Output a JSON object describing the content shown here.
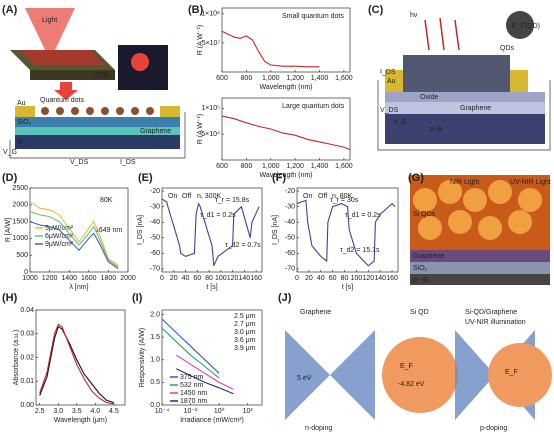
{
  "figure": {
    "panel_labels": [
      "(A)",
      "(B)",
      "(C)",
      "(D)",
      "(E)",
      "(F)",
      "(G)",
      "(H)",
      "(I)",
      "(J)"
    ],
    "a_texts": [
      "Light",
      "CdS",
      "Quantum dots",
      "Au",
      "SiO₂",
      "Graphene",
      "Si",
      "V_G",
      "V_DS",
      "I_DS"
    ],
    "c_texts": [
      "hν",
      "QDs",
      "E_F(QD)",
      "Au",
      "Oxide",
      "Graphene",
      "p-Si",
      "I_DS",
      "V_DS",
      "V_G"
    ],
    "g_texts": [
      "NIR Light",
      "UV-NIR Light",
      "Si QDs",
      "Graphene",
      "SiO₂",
      "p⁺-Si"
    ],
    "j_texts": [
      "Graphene",
      "Si QD",
      "Si-QD/Graphene",
      "UV-NIR illumination",
      "5 eV",
      "-4.82 eV",
      "n-doping",
      "p-doping",
      "E_F",
      "E_F"
    ]
  },
  "chart_data": [
    {
      "type": "line",
      "title": "Small quantum dots",
      "xlabel": "Wavelength (nm)",
      "ylabel": "R (A W⁻¹)",
      "xlim": [
        600,
        1650
      ],
      "xticks": [
        600,
        800,
        {
          "value": 1000,
          "label": "1,000"
        },
        {
          "value": 1200,
          "label": "1,200"
        },
        {
          "value": 1400,
          "label": "1,400"
        },
        {
          "value": 1600,
          "label": "1,600"
        }
      ],
      "ylim": [
        0,
        110000000
      ],
      "yticks": [
        {
          "value": 50000000,
          "label": "5×10⁷"
        },
        {
          "value": 100000000,
          "label": "1×10⁸"
        }
      ],
      "series": [
        {
          "color": "#c0282d",
          "x": [
            600,
            650,
            700,
            750,
            800,
            850,
            900,
            950,
            1000,
            1100,
            1200,
            1300,
            1400
          ],
          "values": [
            70000000,
            65000000,
            60000000,
            58000000,
            62000000,
            55000000,
            35000000,
            18000000,
            12000000,
            10000000,
            10000000,
            9000000,
            9000000
          ]
        }
      ]
    },
    {
      "type": "line",
      "title": "Large quantum dots",
      "xlabel": "Wavelength (nm)",
      "ylabel": "R (A W⁻¹)",
      "xlim": [
        600,
        1650
      ],
      "xticks": [
        600,
        800,
        {
          "value": 1000,
          "label": "1,000"
        },
        {
          "value": 1200,
          "label": "1,200"
        },
        {
          "value": 1400,
          "label": "1,400"
        },
        {
          "value": 1600,
          "label": "1,600"
        }
      ],
      "ylim": [
        0,
        120000
      ],
      "yticks": [
        {
          "value": 50000,
          "label": "5×10⁴"
        },
        {
          "value": 100000,
          "label": "1×10⁵"
        }
      ],
      "series": [
        {
          "color": "#c0282d",
          "x": [
            600,
            700,
            800,
            900,
            1000,
            1100,
            1200,
            1300,
            1400,
            1500,
            1600,
            1650
          ],
          "values": [
            85000,
            80000,
            72000,
            65000,
            60000,
            52000,
            48000,
            40000,
            35000,
            30000,
            25000,
            20000
          ]
        }
      ]
    },
    {
      "type": "line",
      "xlabel": "λ [nm]",
      "ylabel": "R [A/W]",
      "annotations": [
        "80K",
        "1649 nm"
      ],
      "xlim": [
        1000,
        2000
      ],
      "xticks": [
        1000,
        1200,
        1400,
        1600,
        1800,
        2000
      ],
      "ylim": [
        0,
        2500
      ],
      "yticks": [
        0,
        500,
        1000,
        1500,
        2000,
        2500
      ],
      "series": [
        {
          "name": "5μW/cm²",
          "color": "#e8c040",
          "x": [
            1000,
            1100,
            1200,
            1300,
            1400,
            1500,
            1600,
            1650,
            1700,
            1800,
            1900
          ],
          "values": [
            2100,
            1900,
            1850,
            1700,
            1300,
            900,
            1300,
            1500,
            1200,
            400,
            200
          ]
        },
        {
          "name": "6μW/cm²",
          "color": "#6cbf86",
          "x": [
            1000,
            1100,
            1200,
            1300,
            1400,
            1500,
            1600,
            1650,
            1700,
            1800,
            1900
          ],
          "values": [
            1800,
            1700,
            1650,
            1500,
            1150,
            800,
            1150,
            1350,
            1050,
            350,
            150
          ]
        },
        {
          "name": "9μW/cm²",
          "color": "#3f66a3",
          "x": [
            1000,
            1100,
            1200,
            1300,
            1400,
            1500,
            1600,
            1650,
            1700,
            1800,
            1900
          ],
          "values": [
            1500,
            1400,
            1350,
            1250,
            950,
            650,
            1000,
            1150,
            900,
            300,
            100
          ]
        }
      ]
    },
    {
      "type": "line",
      "title": "n, 300K",
      "xlabel": "t [s]",
      "ylabel": "I_DS [nA]",
      "annotations": [
        "On",
        "Off",
        "τ_r = 15.8s",
        "τ_d1 = 0.2s",
        "τ_d2 = 0.7s"
      ],
      "xlim": [
        0,
        170
      ],
      "xticks": [
        0,
        20,
        40,
        60,
        80,
        100,
        120,
        140,
        160
      ],
      "ylim": [
        -72,
        -18
      ],
      "yticks": [
        -20,
        -30,
        -40,
        -50,
        -60,
        -70
      ],
      "series": [
        {
          "color": "#4b3c9c",
          "x": [
            0,
            8,
            10,
            30,
            32,
            40,
            55,
            58,
            62,
            65,
            85,
            88,
            95,
            120,
            122,
            135,
            150,
            153,
            165
          ],
          "values": [
            -25,
            -27,
            -30,
            -55,
            -60,
            -62,
            -60,
            -35,
            -28,
            -30,
            -55,
            -68,
            -62,
            -55,
            -35,
            -30,
            -50,
            -40,
            -30
          ]
        }
      ]
    },
    {
      "type": "line",
      "title": "n, 80K",
      "xlabel": "t [s]",
      "ylabel": "I_DS [nA]",
      "annotations": [
        "On",
        "Off",
        "τ_r = 30s",
        "τ_d1 = 0.2s",
        "τ_d2 = 15.1s"
      ],
      "xlim": [
        0,
        170
      ],
      "xticks": [
        0,
        20,
        40,
        60,
        80,
        100,
        120,
        140,
        160
      ],
      "ylim": [
        -72,
        -18
      ],
      "yticks": [
        -20,
        -30,
        -40,
        -50,
        -60,
        -70
      ],
      "series": [
        {
          "color": "#4b3c9c",
          "x": [
            0,
            15,
            18,
            25,
            40,
            50,
            52,
            60,
            75,
            85,
            88,
            100,
            120,
            130,
            132,
            140,
            160,
            165
          ],
          "values": [
            -28,
            -26,
            -40,
            -55,
            -62,
            -65,
            -40,
            -30,
            -28,
            -30,
            -45,
            -60,
            -68,
            -65,
            -40,
            -35,
            -28,
            -30
          ]
        }
      ]
    },
    {
      "type": "line",
      "xlabel": "Wavelength (μm)",
      "ylabel": "Absorbance (a.u.)",
      "xlim": [
        2.4,
        4.8
      ],
      "xticks": [
        2.5,
        {
          "value": 3,
          "label": "3.0"
        },
        3.5,
        {
          "value": 4,
          "label": "4.0"
        },
        4.5
      ],
      "ylim": [
        0,
        0.04
      ],
      "yticks": [
        {
          "value": 0,
          "label": "0.00"
        },
        0.01,
        0.02,
        0.03,
        0.04
      ],
      "series": [
        {
          "color": "#111111",
          "x": [
            2.5,
            2.7,
            2.9,
            3.0,
            3.1,
            3.3,
            3.5,
            3.7,
            3.9,
            4.1,
            4.3,
            4.5
          ],
          "values": [
            0.004,
            0.012,
            0.028,
            0.033,
            0.032,
            0.026,
            0.019,
            0.013,
            0.009,
            0.005,
            0.002,
            0.001
          ]
        },
        {
          "color": "#c0282d",
          "x": [
            2.5,
            2.7,
            2.9,
            3.0,
            3.1,
            3.3,
            3.5,
            3.7,
            3.9,
            4.1,
            4.3,
            4.5
          ],
          "values": [
            0.005,
            0.014,
            0.03,
            0.034,
            0.033,
            0.025,
            0.017,
            0.011,
            0.006,
            0.003,
            0.001,
            0.0005
          ]
        }
      ]
    },
    {
      "type": "line",
      "log_x": true,
      "xlabel": "Irradiance (mW/cm²)",
      "ylabel": "Responsivity (A/W)",
      "legend_extra": [
        "2.5 μm",
        "2.7 μm",
        "3.0 μm",
        "3.6 μm",
        "3.9 μm"
      ],
      "xlim": [
        0.0001,
        1000
      ],
      "xticks": [
        {
          "value": 0.0001,
          "label": "10⁻⁴"
        },
        {
          "value": 0.01,
          "label": "10⁻²"
        },
        {
          "value": 1,
          "label": "10⁰"
        },
        {
          "value": 100,
          "label": "10²"
        }
      ],
      "ylim": [
        0,
        2.1
      ],
      "yticks": [
        {
          "value": 0,
          "label": "0.0"
        },
        0.5,
        {
          "value": 1,
          "label": "1.0"
        },
        1.5,
        {
          "value": 2,
          "label": "2.0"
        }
      ],
      "series": [
        {
          "name": "375 nm",
          "color": "#2d5fc4",
          "x": [
            0.0001,
            0.001,
            0.01,
            0.1,
            1
          ],
          "values": [
            1.9,
            1.6,
            1.3,
            1.0,
            0.7
          ]
        },
        {
          "name": "532 nm",
          "color": "#2fa35a",
          "x": [
            0.0001,
            0.001,
            0.01,
            0.1,
            1
          ],
          "values": [
            1.7,
            1.4,
            1.1,
            0.85,
            0.6
          ]
        },
        {
          "name": "1450 nm",
          "color": "#d23fc0",
          "x": [
            0.001,
            0.01,
            0.1,
            1,
            10
          ],
          "values": [
            1.1,
            0.9,
            0.7,
            0.5,
            0.35
          ]
        },
        {
          "name": "1870 nm",
          "color": "#1b2f78",
          "x": [
            0.001,
            0.01,
            0.1,
            1,
            10
          ],
          "values": [
            0.8,
            0.65,
            0.5,
            0.38,
            0.25
          ]
        }
      ]
    }
  ]
}
